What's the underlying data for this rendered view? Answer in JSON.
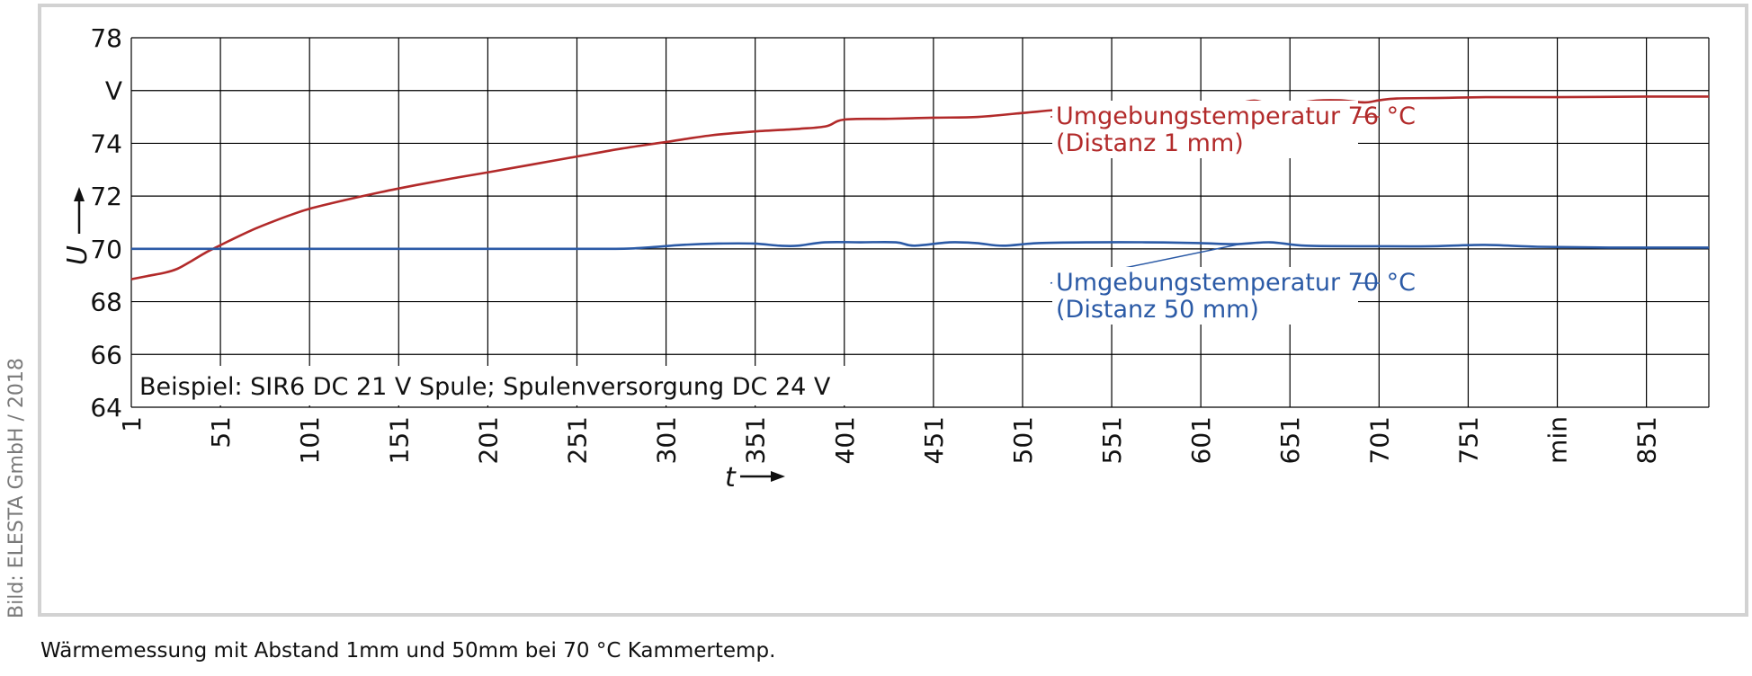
{
  "credit": "Bild: ELESTA GmbH / 2018",
  "caption": "Wärmemessung mit Abstand 1mm und 50mm bei 70 °C Kammertemp.",
  "chart_data": {
    "type": "line",
    "ylabel": "U",
    "xlabel": "t",
    "ylim": [
      64,
      78
    ],
    "xlim": [
      1,
      886
    ],
    "y_ticks": [
      "64",
      "66",
      "68",
      "70",
      "72",
      "74",
      "V",
      "78"
    ],
    "x_ticks": [
      "1",
      "51",
      "101",
      "151",
      "201",
      "251",
      "301",
      "351",
      "401",
      "451",
      "501",
      "551",
      "601",
      "651",
      "701",
      "751",
      "min",
      "851"
    ],
    "grid": true,
    "annotation": "Beispiel: SIR6 DC 21 V Spule; Spulenversorgung DC 24 V",
    "colors": {
      "red": "#b22a2a",
      "blue": "#2b5aa6",
      "grid": "#000000"
    },
    "series": [
      {
        "name": "Umgebungstemperatur 76 °C (Distanz 1 mm)",
        "label_lines": [
          "Umgebungstemperatur 76 °C",
          "(Distanz 1 mm)"
        ],
        "color": "#b22a2a",
        "x": [
          1,
          10,
          20,
          27,
          35,
          43,
          51,
          61,
          71,
          81,
          91,
          101,
          121,
          141,
          161,
          181,
          201,
          226,
          251,
          276,
          301,
          326,
          351,
          376,
          391,
          401,
          426,
          451,
          476,
          501,
          526,
          551,
          576,
          601,
          616,
          624,
          631,
          639,
          651,
          666,
          679,
          693,
          701,
          711,
          736,
          761,
          801,
          851,
          886
        ],
        "y": [
          68.85,
          68.97,
          69.1,
          69.25,
          69.55,
          69.87,
          70.14,
          70.47,
          70.78,
          71.05,
          71.3,
          71.52,
          71.85,
          72.15,
          72.42,
          72.67,
          72.9,
          73.2,
          73.5,
          73.8,
          74.05,
          74.3,
          74.45,
          74.55,
          74.65,
          74.9,
          74.93,
          74.97,
          75.0,
          75.15,
          75.3,
          75.4,
          75.47,
          75.5,
          75.52,
          75.55,
          75.62,
          75.52,
          75.5,
          75.62,
          75.63,
          75.55,
          75.63,
          75.7,
          75.72,
          75.75,
          75.75,
          75.77,
          75.77
        ]
      },
      {
        "name": "Umgebungstemperatur 70 °C (Distanz 50 mm)",
        "label_lines": [
          "Umgebungstemperatur 70 °C",
          "(Distanz 50 mm)"
        ],
        "color": "#2b5aa6",
        "x": [
          1,
          100,
          200,
          270,
          290,
          310,
          330,
          350,
          365,
          375,
          390,
          410,
          430,
          440,
          460,
          475,
          490,
          510,
          540,
          570,
          600,
          620,
          640,
          660,
          700,
          730,
          760,
          790,
          830,
          886
        ],
        "y": [
          70.0,
          70.0,
          70.0,
          70.0,
          70.05,
          70.15,
          70.2,
          70.2,
          70.12,
          70.12,
          70.25,
          70.25,
          70.25,
          70.12,
          70.25,
          70.22,
          70.12,
          70.22,
          70.25,
          70.25,
          70.22,
          70.18,
          70.25,
          70.12,
          70.1,
          70.1,
          70.15,
          70.08,
          70.05,
          70.05
        ]
      }
    ]
  }
}
